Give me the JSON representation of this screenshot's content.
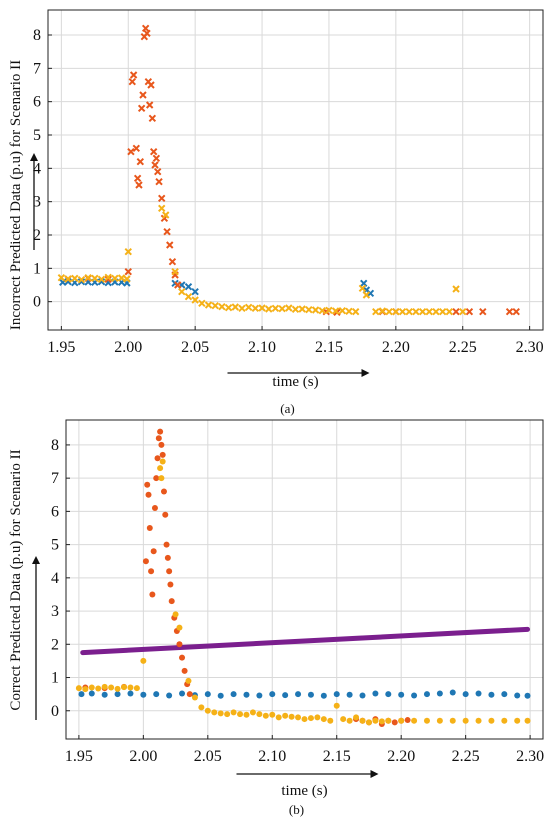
{
  "chart_data": [
    {
      "id": "a",
      "type": "scatter",
      "marker": "x",
      "caption": "(a)",
      "xlabel": "time (s)",
      "ylabel": "Incorrect Predicted Data (p.u) for Scenario II",
      "xlim": [
        1.94,
        2.31
      ],
      "ylim": [
        -0.85,
        8.75
      ],
      "xticks": [
        "1.95",
        "2.00",
        "2.05",
        "2.10",
        "2.15",
        "2.20",
        "2.25",
        "2.30"
      ],
      "yticks": [
        "0",
        "1",
        "2",
        "3",
        "4",
        "5",
        "6",
        "7",
        "8"
      ],
      "grid": true,
      "colors": [
        "#1f77b4",
        "#e8571c",
        "#f5b117"
      ],
      "series": [
        {
          "color": "#1f77b4",
          "points": [
            [
              1.951,
              0.58
            ],
            [
              1.955,
              0.6
            ],
            [
              1.96,
              0.57
            ],
            [
              1.965,
              0.6
            ],
            [
              1.97,
              0.59
            ],
            [
              1.975,
              0.58
            ],
            [
              1.98,
              0.6
            ],
            [
              1.985,
              0.57
            ],
            [
              1.99,
              0.59
            ],
            [
              1.995,
              0.58
            ],
            [
              1.999,
              0.56
            ],
            [
              2.035,
              0.55
            ],
            [
              2.04,
              0.5
            ],
            [
              2.045,
              0.45
            ],
            [
              2.05,
              0.3
            ],
            [
              2.176,
              0.55
            ],
            [
              2.178,
              0.35
            ],
            [
              2.181,
              0.25
            ]
          ]
        },
        {
          "color": "#e8571c",
          "points": [
            [
              1.955,
              0.68
            ],
            [
              1.97,
              0.7
            ],
            [
              1.985,
              0.67
            ],
            [
              2.0,
              0.9
            ],
            [
              2.002,
              4.5
            ],
            [
              2.003,
              6.6
            ],
            [
              2.004,
              6.8
            ],
            [
              2.006,
              4.6
            ],
            [
              2.007,
              3.7
            ],
            [
              2.008,
              3.5
            ],
            [
              2.009,
              4.2
            ],
            [
              2.01,
              5.8
            ],
            [
              2.011,
              6.2
            ],
            [
              2.012,
              7.95
            ],
            [
              2.013,
              8.2
            ],
            [
              2.014,
              8.05
            ],
            [
              2.015,
              6.6
            ],
            [
              2.016,
              5.9
            ],
            [
              2.017,
              6.5
            ],
            [
              2.018,
              5.5
            ],
            [
              2.019,
              4.5
            ],
            [
              2.02,
              4.1
            ],
            [
              2.021,
              4.3
            ],
            [
              2.022,
              3.9
            ],
            [
              2.023,
              3.6
            ],
            [
              2.025,
              3.1
            ],
            [
              2.027,
              2.5
            ],
            [
              2.029,
              2.1
            ],
            [
              2.031,
              1.7
            ],
            [
              2.033,
              1.2
            ],
            [
              2.035,
              0.8
            ],
            [
              2.037,
              0.5
            ],
            [
              2.148,
              -0.3
            ],
            [
              2.156,
              -0.32
            ],
            [
              2.19,
              -0.3
            ],
            [
              2.2,
              -0.3
            ],
            [
              2.245,
              -0.3
            ],
            [
              2.255,
              -0.3
            ],
            [
              2.265,
              -0.3
            ],
            [
              2.285,
              -0.3
            ],
            [
              2.29,
              -0.3
            ]
          ]
        },
        {
          "color": "#f5b117",
          "points": [
            [
              1.95,
              0.72
            ],
            [
              1.955,
              0.68
            ],
            [
              1.96,
              0.7
            ],
            [
              1.965,
              0.66
            ],
            [
              1.97,
              0.72
            ],
            [
              1.975,
              0.7
            ],
            [
              1.98,
              0.67
            ],
            [
              1.985,
              0.73
            ],
            [
              1.99,
              0.7
            ],
            [
              1.995,
              0.71
            ],
            [
              1.999,
              0.68
            ],
            [
              2.0,
              1.5
            ],
            [
              2.025,
              2.8
            ],
            [
              2.028,
              2.6
            ],
            [
              2.035,
              0.9
            ],
            [
              2.04,
              0.3
            ],
            [
              2.045,
              0.15
            ],
            [
              2.05,
              0.05
            ],
            [
              2.055,
              -0.05
            ],
            [
              2.06,
              -0.1
            ],
            [
              2.065,
              -0.12
            ],
            [
              2.07,
              -0.15
            ],
            [
              2.075,
              -0.18
            ],
            [
              2.08,
              -0.16
            ],
            [
              2.085,
              -0.2
            ],
            [
              2.09,
              -0.17
            ],
            [
              2.095,
              -0.2
            ],
            [
              2.1,
              -0.19
            ],
            [
              2.105,
              -0.22
            ],
            [
              2.11,
              -0.2
            ],
            [
              2.115,
              -0.21
            ],
            [
              2.12,
              -0.19
            ],
            [
              2.125,
              -0.23
            ],
            [
              2.13,
              -0.22
            ],
            [
              2.135,
              -0.24
            ],
            [
              2.14,
              -0.25
            ],
            [
              2.145,
              -0.27
            ],
            [
              2.15,
              -0.26
            ],
            [
              2.155,
              -0.28
            ],
            [
              2.16,
              -0.27
            ],
            [
              2.165,
              -0.29
            ],
            [
              2.17,
              -0.3
            ],
            [
              2.175,
              0.4
            ],
            [
              2.178,
              0.2
            ],
            [
              2.185,
              -0.3
            ],
            [
              2.19,
              -0.28
            ],
            [
              2.195,
              -0.3
            ],
            [
              2.2,
              -0.3
            ],
            [
              2.205,
              -0.3
            ],
            [
              2.21,
              -0.3
            ],
            [
              2.215,
              -0.3
            ],
            [
              2.22,
              -0.3
            ],
            [
              2.225,
              -0.3
            ],
            [
              2.23,
              -0.3
            ],
            [
              2.235,
              -0.3
            ],
            [
              2.24,
              -0.3
            ],
            [
              2.245,
              0.38
            ],
            [
              2.25,
              -0.3
            ]
          ]
        }
      ]
    },
    {
      "id": "b",
      "type": "scatter",
      "marker": "dot",
      "caption": "(b)",
      "xlabel": "time (s)",
      "ylabel": "Correct Predicted Data (p.u) for Scenario II",
      "xlim": [
        1.94,
        2.31
      ],
      "ylim": [
        -0.85,
        8.75
      ],
      "xticks": [
        "1.95",
        "2.00",
        "2.05",
        "2.10",
        "2.15",
        "2.20",
        "2.25",
        "2.30"
      ],
      "yticks": [
        "0",
        "1",
        "2",
        "3",
        "4",
        "5",
        "6",
        "7",
        "8"
      ],
      "grid": true,
      "colors": [
        "#1f77b4",
        "#e8571c",
        "#f5b117",
        "#7b1f8e"
      ],
      "series": [
        {
          "color": "#1f77b4",
          "points": [
            [
              1.952,
              0.5
            ],
            [
              1.96,
              0.52
            ],
            [
              1.97,
              0.48
            ],
            [
              1.98,
              0.5
            ],
            [
              1.99,
              0.52
            ],
            [
              2.0,
              0.48
            ],
            [
              2.01,
              0.5
            ],
            [
              2.02,
              0.46
            ],
            [
              2.03,
              0.52
            ],
            [
              2.04,
              0.47
            ],
            [
              2.05,
              0.5
            ],
            [
              2.06,
              0.45
            ],
            [
              2.07,
              0.5
            ],
            [
              2.08,
              0.48
            ],
            [
              2.09,
              0.46
            ],
            [
              2.1,
              0.5
            ],
            [
              2.11,
              0.47
            ],
            [
              2.12,
              0.5
            ],
            [
              2.13,
              0.48
            ],
            [
              2.14,
              0.45
            ],
            [
              2.15,
              0.5
            ],
            [
              2.16,
              0.48
            ],
            [
              2.17,
              0.46
            ],
            [
              2.18,
              0.52
            ],
            [
              2.19,
              0.5
            ],
            [
              2.2,
              0.48
            ],
            [
              2.21,
              0.46
            ],
            [
              2.22,
              0.5
            ],
            [
              2.23,
              0.52
            ],
            [
              2.24,
              0.55
            ],
            [
              2.25,
              0.5
            ],
            [
              2.26,
              0.52
            ],
            [
              2.27,
              0.48
            ],
            [
              2.28,
              0.5
            ],
            [
              2.29,
              0.46
            ],
            [
              2.298,
              0.45
            ]
          ]
        },
        {
          "color": "#e8571c",
          "points": [
            [
              1.955,
              0.7
            ],
            [
              1.97,
              0.68
            ],
            [
              1.985,
              0.72
            ],
            [
              2.002,
              4.5
            ],
            [
              2.003,
              6.8
            ],
            [
              2.004,
              6.5
            ],
            [
              2.005,
              5.5
            ],
            [
              2.006,
              4.2
            ],
            [
              2.007,
              3.5
            ],
            [
              2.008,
              4.8
            ],
            [
              2.009,
              6.1
            ],
            [
              2.01,
              7.0
            ],
            [
              2.011,
              7.6
            ],
            [
              2.012,
              8.2
            ],
            [
              2.013,
              8.4
            ],
            [
              2.014,
              8.0
            ],
            [
              2.015,
              7.7
            ],
            [
              2.016,
              6.6
            ],
            [
              2.017,
              5.9
            ],
            [
              2.018,
              5.0
            ],
            [
              2.019,
              4.6
            ],
            [
              2.02,
              4.2
            ],
            [
              2.021,
              3.8
            ],
            [
              2.022,
              3.3
            ],
            [
              2.024,
              2.8
            ],
            [
              2.026,
              2.4
            ],
            [
              2.028,
              2.0
            ],
            [
              2.03,
              1.6
            ],
            [
              2.032,
              1.2
            ],
            [
              2.034,
              0.8
            ],
            [
              2.036,
              0.5
            ],
            [
              2.165,
              -0.25
            ],
            [
              2.17,
              -0.3
            ],
            [
              2.175,
              -0.35
            ],
            [
              2.18,
              -0.25
            ],
            [
              2.185,
              -0.4
            ],
            [
              2.19,
              -0.3
            ],
            [
              2.195,
              -0.35
            ],
            [
              2.2,
              -0.3
            ],
            [
              2.205,
              -0.28
            ]
          ]
        },
        {
          "color": "#f5b117",
          "points": [
            [
              1.95,
              0.68
            ],
            [
              1.955,
              0.65
            ],
            [
              1.96,
              0.7
            ],
            [
              1.965,
              0.67
            ],
            [
              1.97,
              0.72
            ],
            [
              1.975,
              0.7
            ],
            [
              1.98,
              0.66
            ],
            [
              1.985,
              0.71
            ],
            [
              1.99,
              0.7
            ],
            [
              1.995,
              0.68
            ],
            [
              2.0,
              1.5
            ],
            [
              2.013,
              7.3
            ],
            [
              2.014,
              7.0
            ],
            [
              2.015,
              7.5
            ],
            [
              2.025,
              2.9
            ],
            [
              2.028,
              2.5
            ],
            [
              2.035,
              0.9
            ],
            [
              2.04,
              0.4
            ],
            [
              2.045,
              0.1
            ],
            [
              2.05,
              0.0
            ],
            [
              2.055,
              -0.05
            ],
            [
              2.06,
              -0.08
            ],
            [
              2.065,
              -0.1
            ],
            [
              2.07,
              -0.05
            ],
            [
              2.075,
              -0.1
            ],
            [
              2.08,
              -0.12
            ],
            [
              2.085,
              -0.05
            ],
            [
              2.09,
              -0.1
            ],
            [
              2.095,
              -0.15
            ],
            [
              2.1,
              -0.12
            ],
            [
              2.105,
              -0.2
            ],
            [
              2.11,
              -0.15
            ],
            [
              2.115,
              -0.18
            ],
            [
              2.12,
              -0.2
            ],
            [
              2.125,
              -0.25
            ],
            [
              2.13,
              -0.22
            ],
            [
              2.135,
              -0.2
            ],
            [
              2.14,
              -0.25
            ],
            [
              2.145,
              -0.3
            ],
            [
              2.15,
              0.15
            ],
            [
              2.155,
              -0.25
            ],
            [
              2.16,
              -0.3
            ],
            [
              2.165,
              -0.2
            ],
            [
              2.17,
              -0.3
            ],
            [
              2.175,
              -0.35
            ],
            [
              2.18,
              -0.3
            ],
            [
              2.185,
              -0.32
            ],
            [
              2.19,
              -0.3
            ],
            [
              2.2,
              -0.3
            ],
            [
              2.21,
              -0.3
            ],
            [
              2.22,
              -0.3
            ],
            [
              2.23,
              -0.3
            ],
            [
              2.24,
              -0.3
            ],
            [
              2.25,
              -0.3
            ],
            [
              2.26,
              -0.3
            ],
            [
              2.27,
              -0.3
            ],
            [
              2.28,
              -0.3
            ],
            [
              2.29,
              -0.3
            ],
            [
              2.298,
              -0.3
            ]
          ]
        }
      ],
      "lines": [
        {
          "color": "#7b1f8e",
          "points": [
            [
              1.953,
              1.75
            ],
            [
              2.298,
              2.45
            ]
          ]
        }
      ]
    }
  ]
}
